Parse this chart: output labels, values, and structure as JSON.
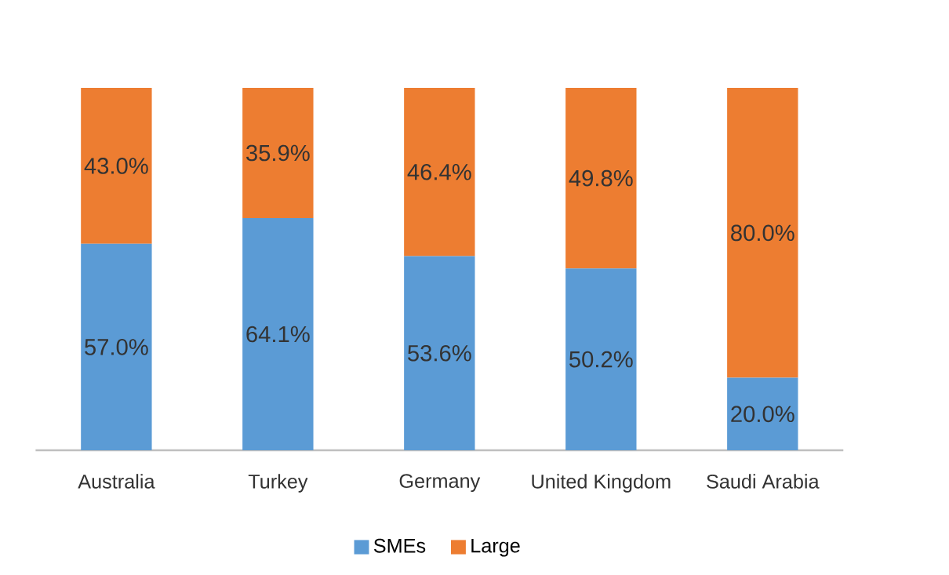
{
  "chart_data": {
    "type": "bar",
    "stacked": true,
    "legend": "bottom",
    "categories": [
      "Australia",
      "Turkey",
      "Germany",
      "United Kingdom",
      "Saudi Arabia"
    ],
    "series": [
      {
        "name": "SMEs",
        "color": "#5b9bd5",
        "values": [
          57.0,
          64.1,
          53.6,
          50.2,
          20.0
        ],
        "value_labels": [
          "57.0%",
          "64.1%",
          "53.6%",
          "50.2%",
          "20.0%"
        ]
      },
      {
        "name": "Large",
        "color": "#ed7d31",
        "values": [
          43.0,
          35.9,
          46.4,
          49.8,
          80.0
        ],
        "value_labels": [
          "43.0%",
          "35.9%",
          "46.4%",
          "49.8%",
          "80.0%"
        ]
      }
    ]
  }
}
